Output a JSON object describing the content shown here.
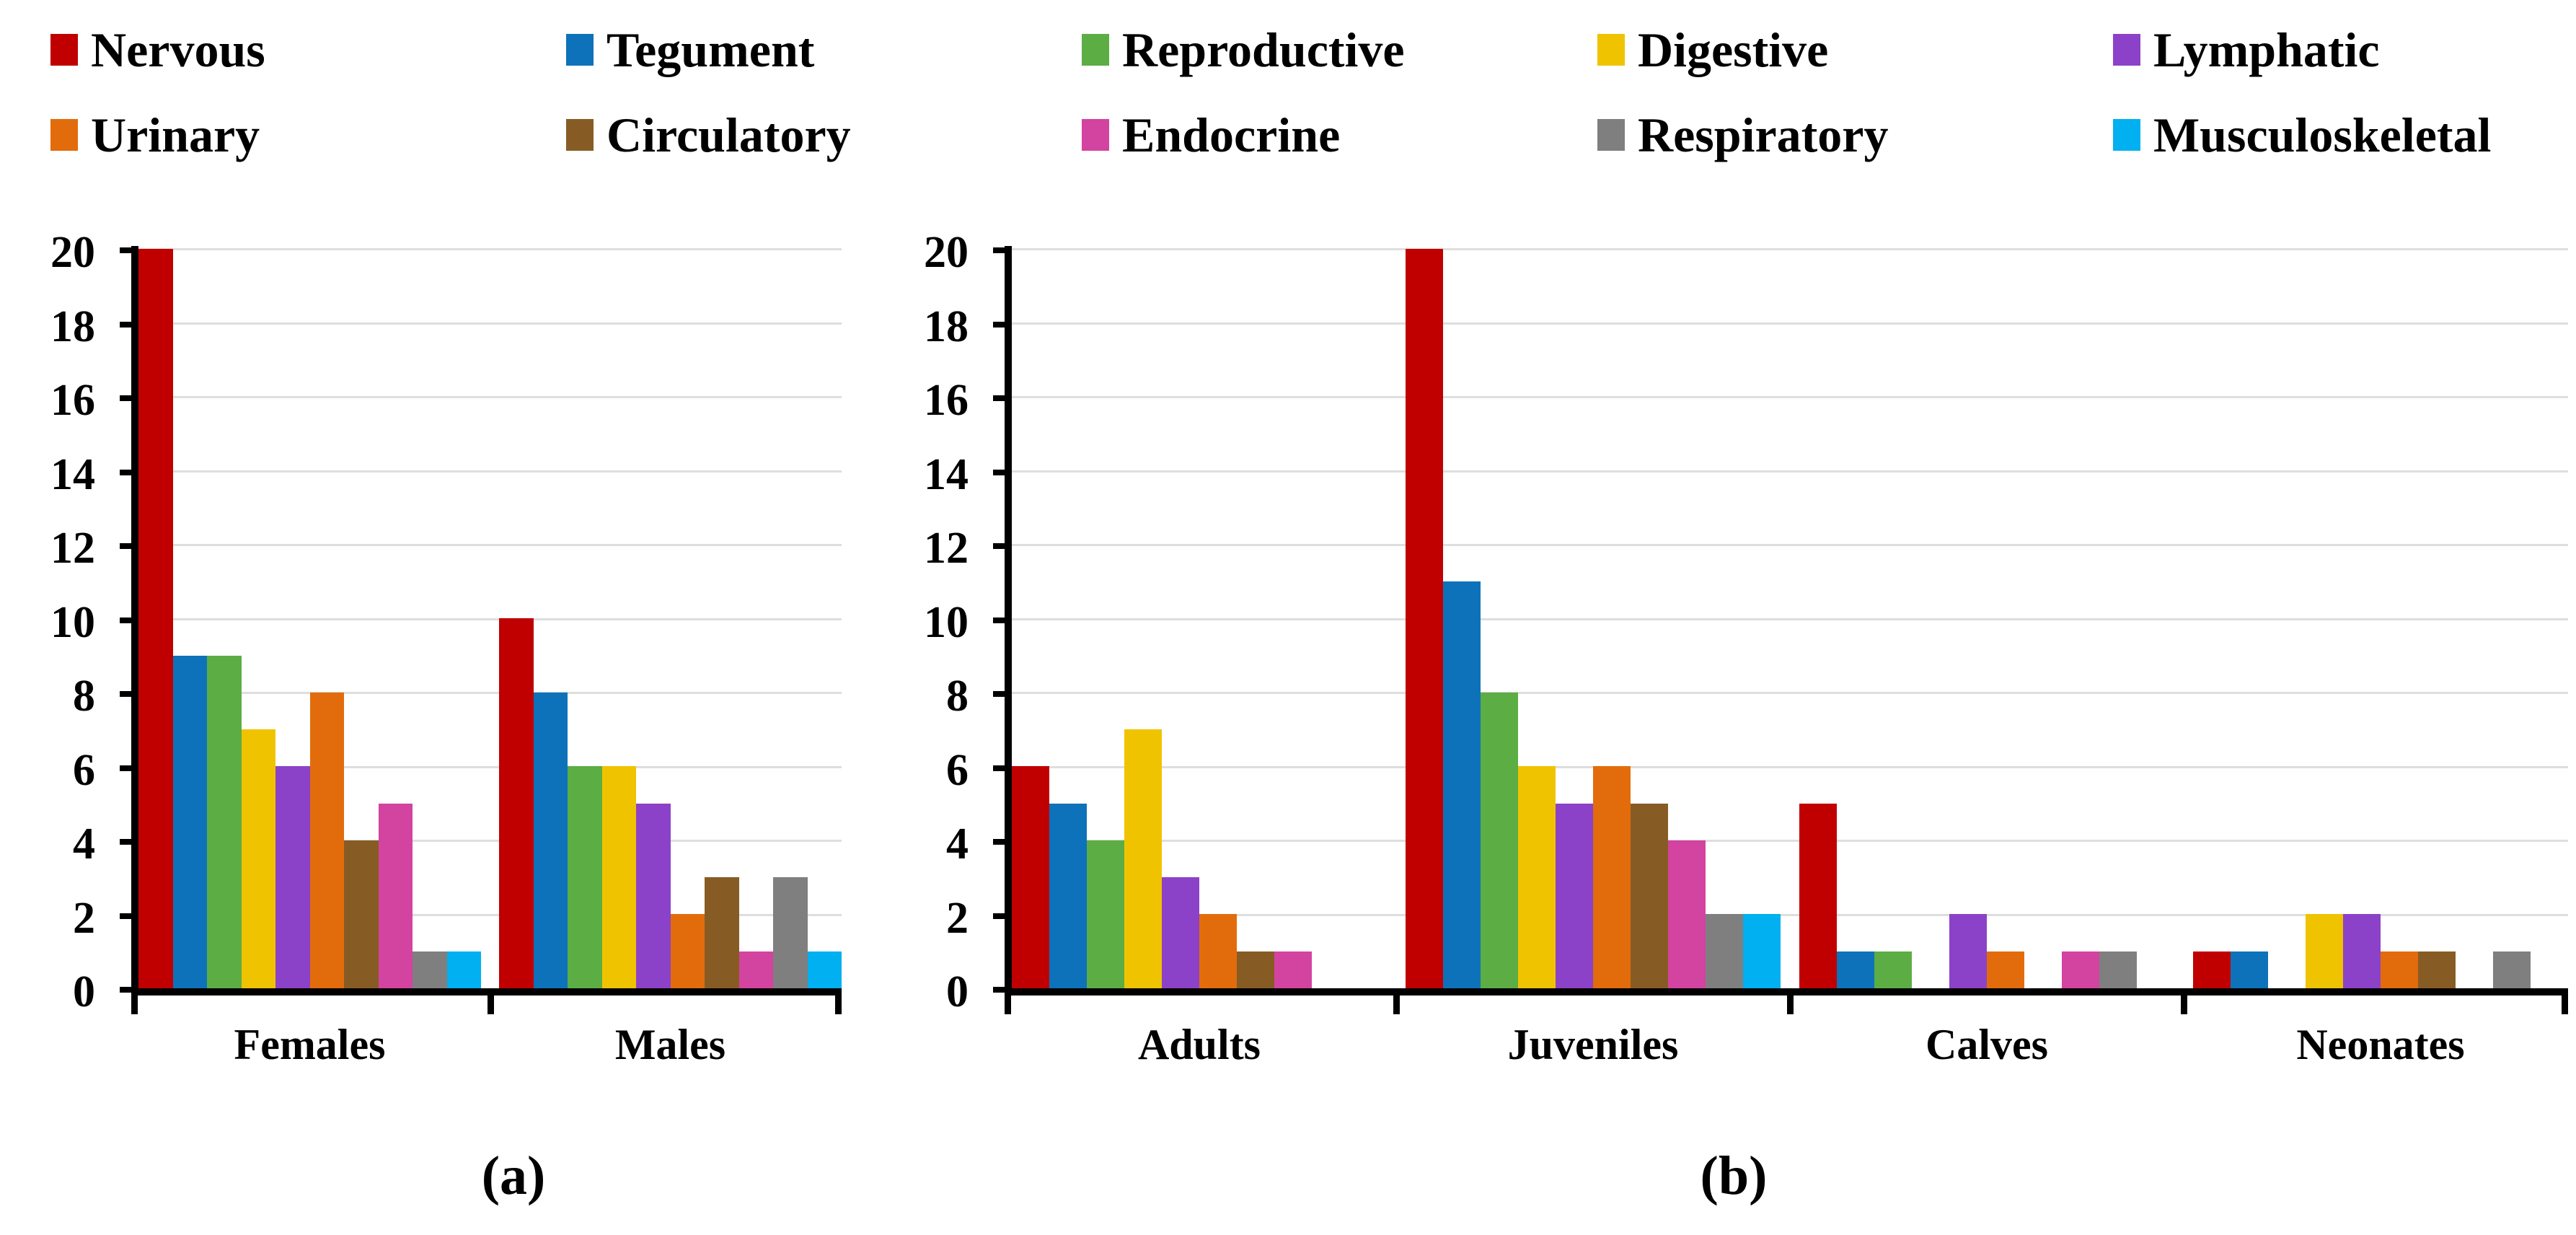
{
  "legend": {
    "items": [
      {
        "label": "Nervous",
        "color": "#C00000"
      },
      {
        "label": "Tegument",
        "color": "#0D72B9"
      },
      {
        "label": "Reproductive",
        "color": "#5BAD44"
      },
      {
        "label": "Digestive",
        "color": "#F0C300"
      },
      {
        "label": "Lymphatic",
        "color": "#8C42C8"
      },
      {
        "label": "Urinary",
        "color": "#E26C0C"
      },
      {
        "label": "Circulatory",
        "color": "#875C24"
      },
      {
        "label": "Endocrine",
        "color": "#D343A0"
      },
      {
        "label": "Respiratory",
        "color": "#7F7F7F"
      },
      {
        "label": "Musculoskeletal",
        "color": "#00B0F0"
      }
    ]
  },
  "chart_data": [
    {
      "type": "bar",
      "id": "a",
      "caption": "(a)",
      "categories": [
        "Females",
        "Males"
      ],
      "series": [
        {
          "name": "Nervous",
          "color": "#C00000",
          "values": [
            20,
            10
          ]
        },
        {
          "name": "Tegument",
          "color": "#0D72B9",
          "values": [
            9,
            8
          ]
        },
        {
          "name": "Reproductive",
          "color": "#5BAD44",
          "values": [
            9,
            6
          ]
        },
        {
          "name": "Digestive",
          "color": "#F0C300",
          "values": [
            7,
            6
          ]
        },
        {
          "name": "Lymphatic",
          "color": "#8C42C8",
          "values": [
            6,
            5
          ]
        },
        {
          "name": "Urinary",
          "color": "#E26C0C",
          "values": [
            8,
            2
          ]
        },
        {
          "name": "Circulatory",
          "color": "#875C24",
          "values": [
            4,
            3
          ]
        },
        {
          "name": "Endocrine",
          "color": "#D343A0",
          "values": [
            5,
            1
          ]
        },
        {
          "name": "Respiratory",
          "color": "#7F7F7F",
          "values": [
            1,
            3
          ]
        },
        {
          "name": "Musculoskeletal",
          "color": "#00B0F0",
          "values": [
            1,
            1
          ]
        }
      ],
      "ylim": [
        0,
        20
      ],
      "ytick_step": 2,
      "grid": true,
      "legend_position": "top",
      "xlabel": "",
      "ylabel": ""
    },
    {
      "type": "bar",
      "id": "b",
      "caption": "(b)",
      "categories": [
        "Adults",
        "Juveniles",
        "Calves",
        "Neonates"
      ],
      "series": [
        {
          "name": "Nervous",
          "color": "#C00000",
          "values": [
            6,
            20,
            5,
            1
          ]
        },
        {
          "name": "Tegument",
          "color": "#0D72B9",
          "values": [
            5,
            11,
            1,
            1
          ]
        },
        {
          "name": "Reproductive",
          "color": "#5BAD44",
          "values": [
            4,
            8,
            1,
            0
          ]
        },
        {
          "name": "Digestive",
          "color": "#F0C300",
          "values": [
            7,
            6,
            0,
            2
          ]
        },
        {
          "name": "Lymphatic",
          "color": "#8C42C8",
          "values": [
            3,
            5,
            2,
            2
          ]
        },
        {
          "name": "Urinary",
          "color": "#E26C0C",
          "values": [
            2,
            6,
            1,
            1
          ]
        },
        {
          "name": "Circulatory",
          "color": "#875C24",
          "values": [
            1,
            5,
            0,
            1
          ]
        },
        {
          "name": "Endocrine",
          "color": "#D343A0",
          "values": [
            1,
            4,
            1,
            0
          ]
        },
        {
          "name": "Respiratory",
          "color": "#7F7F7F",
          "values": [
            0,
            2,
            1,
            1
          ]
        },
        {
          "name": "Musculoskeletal",
          "color": "#00B0F0",
          "values": [
            0,
            2,
            0,
            0
          ]
        }
      ],
      "ylim": [
        0,
        20
      ],
      "ytick_step": 2,
      "grid": true,
      "legend_position": "top",
      "xlabel": "",
      "ylabel": ""
    }
  ]
}
